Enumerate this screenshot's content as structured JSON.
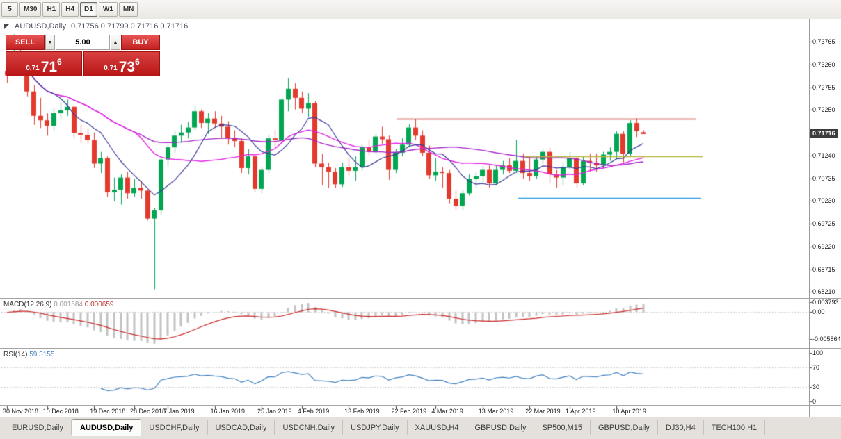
{
  "toolbar": {
    "periods": [
      {
        "label": "5",
        "active": false
      },
      {
        "label": "M30",
        "active": false
      },
      {
        "label": "H1",
        "active": false
      },
      {
        "label": "H4",
        "active": false
      },
      {
        "label": "D1",
        "active": true
      },
      {
        "label": "W1",
        "active": false
      },
      {
        "label": "MN",
        "active": false
      }
    ]
  },
  "chart_header": {
    "symbol": "AUDUSD,Daily",
    "ohlc": "0.71756 0.71799 0.71716 0.71716"
  },
  "icons": {
    "volume_down_icon": "▼",
    "volume_up_icon": "▲"
  },
  "trade_panel": {
    "sell_label": "SELL",
    "buy_label": "BUY",
    "volume": "5.00",
    "sell_price": {
      "prefix": "0.71",
      "big": "71",
      "sup": "6",
      "value": "0.71716"
    },
    "buy_price": {
      "prefix": "0.71",
      "big": "73",
      "sup": "6",
      "value": "0.71736"
    }
  },
  "price_axis": {
    "labels": [
      "0.73765",
      "0.73260",
      "0.72755",
      "0.72250",
      "0.71745",
      "0.71240",
      "0.70735",
      "0.70230",
      "0.69725",
      "0.69220",
      "0.68715",
      "0.68210"
    ],
    "current_tag": "0.71716"
  },
  "time_axis": {
    "labels": [
      {
        "text": "30 Nov 2018",
        "i": 0
      },
      {
        "text": "10 Dec 2018",
        "i": 6
      },
      {
        "text": "19 Dec 2018",
        "i": 13
      },
      {
        "text": "28 Dec 2018",
        "i": 19
      },
      {
        "text": "7 Jan 2019",
        "i": 24
      },
      {
        "text": "16 Jan 2019",
        "i": 31
      },
      {
        "text": "25 Jan 2019",
        "i": 38
      },
      {
        "text": "4 Feb 2019",
        "i": 44
      },
      {
        "text": "13 Feb 2019",
        "i": 51
      },
      {
        "text": "22 Feb 2019",
        "i": 58
      },
      {
        "text": "4 Mar 2019",
        "i": 64
      },
      {
        "text": "13 Mar 2019",
        "i": 71
      },
      {
        "text": "22 Mar 2019",
        "i": 78
      },
      {
        "text": "1 Apr 2019",
        "i": 84
      },
      {
        "text": "10 Apr 2019",
        "i": 91
      }
    ]
  },
  "macd_panel": {
    "label": "MACD(12,26,9)",
    "main_value": "0.001584",
    "signal_value": "0.000659",
    "scale": [
      "0.003793",
      "0.00",
      "-0.005864"
    ]
  },
  "rsi_panel": {
    "label": "RSI(14)",
    "value": "59.3155",
    "scale": [
      "100",
      "70",
      "30",
      "0"
    ]
  },
  "tabs": [
    {
      "label": "EURUSD,Daily",
      "active": false
    },
    {
      "label": "AUDUSD,Daily",
      "active": true
    },
    {
      "label": "USDCHF,Daily",
      "active": false
    },
    {
      "label": "USDCAD,Daily",
      "active": false
    },
    {
      "label": "USDCNH,Daily",
      "active": false
    },
    {
      "label": "USDJPY,Daily",
      "active": false
    },
    {
      "label": "XAUUSD,H4",
      "active": false
    },
    {
      "label": "GBPUSD,Daily",
      "active": false
    },
    {
      "label": "SP500,M15",
      "active": false
    },
    {
      "label": "GBPUSD,Daily",
      "active": false
    },
    {
      "label": "DJ30,H4",
      "active": false
    },
    {
      "label": "TECH100,H1",
      "active": false
    }
  ],
  "chart_data": {
    "type": "candlestick",
    "symbol": "AUDUSD",
    "timeframe": "Daily",
    "ylim": [
      0.68092,
      0.74228
    ],
    "overlays": {
      "ma_fast_period": 8,
      "ma_mid_period": 20,
      "ma_slow_period": 45
    },
    "hlines": [
      {
        "color": "#cc4437",
        "price": 0.7205,
        "x1": 570,
        "x2": 1000
      },
      {
        "color": "#b6b63a",
        "price": 0.71225,
        "x1": 753,
        "x2": 1010
      },
      {
        "color": "#2f9de0",
        "price": 0.703,
        "x1": 745,
        "x2": 1008
      }
    ],
    "colors": {
      "up": "#00a651",
      "down": "#e33a2d",
      "ma_fast": "#3b3b9d",
      "ma_mid": "#e522e5",
      "ma_slow": "#a623c9",
      "macd_hist": "#c3c3c3",
      "macd_signal": "#cc2929",
      "rsi": "#3e7fc1"
    },
    "candles": [
      [
        0.7312,
        0.7327,
        0.7285,
        0.7302
      ],
      [
        0.7302,
        0.7393,
        0.73,
        0.7355
      ],
      [
        0.7355,
        0.7364,
        0.7333,
        0.734
      ],
      [
        0.734,
        0.7345,
        0.7255,
        0.7266
      ],
      [
        0.7266,
        0.728,
        0.7192,
        0.7212
      ],
      [
        0.7212,
        0.7252,
        0.7185,
        0.7202
      ],
      [
        0.7202,
        0.7218,
        0.7168,
        0.719
      ],
      [
        0.719,
        0.7228,
        0.718,
        0.7218
      ],
      [
        0.7218,
        0.7242,
        0.7205,
        0.7224
      ],
      [
        0.7224,
        0.7248,
        0.7212,
        0.7232
      ],
      [
        0.7232,
        0.7235,
        0.7162,
        0.7174
      ],
      [
        0.7174,
        0.7192,
        0.7152,
        0.717
      ],
      [
        0.717,
        0.7185,
        0.715,
        0.7158
      ],
      [
        0.7158,
        0.7175,
        0.7096,
        0.7106
      ],
      [
        0.7106,
        0.7132,
        0.7085,
        0.7118
      ],
      [
        0.7118,
        0.7122,
        0.7032,
        0.7042
      ],
      [
        0.7042,
        0.7075,
        0.7022,
        0.7048
      ],
      [
        0.7048,
        0.7082,
        0.7015,
        0.7075
      ],
      [
        0.7075,
        0.7088,
        0.7028,
        0.704
      ],
      [
        0.704,
        0.7072,
        0.7032,
        0.7052
      ],
      [
        0.7052,
        0.7068,
        0.7028,
        0.7046
      ],
      [
        0.7046,
        0.7048,
        0.698,
        0.6984
      ],
      [
        0.6984,
        0.7008,
        0.6827,
        0.7002
      ],
      [
        0.7002,
        0.7122,
        0.6992,
        0.7115
      ],
      [
        0.7115,
        0.7148,
        0.71,
        0.7142
      ],
      [
        0.7142,
        0.7178,
        0.713,
        0.7168
      ],
      [
        0.7168,
        0.7192,
        0.7152,
        0.7175
      ],
      [
        0.7175,
        0.7198,
        0.7162,
        0.7186
      ],
      [
        0.7186,
        0.7235,
        0.718,
        0.7222
      ],
      [
        0.7222,
        0.7226,
        0.7185,
        0.7196
      ],
      [
        0.7196,
        0.7218,
        0.7172,
        0.7206
      ],
      [
        0.7206,
        0.7222,
        0.7185,
        0.7195
      ],
      [
        0.7195,
        0.7212,
        0.7162,
        0.7188
      ],
      [
        0.7188,
        0.72,
        0.7148,
        0.7162
      ],
      [
        0.7162,
        0.718,
        0.7142,
        0.7156
      ],
      [
        0.7156,
        0.7162,
        0.7085,
        0.7096
      ],
      [
        0.7096,
        0.7138,
        0.7082,
        0.7122
      ],
      [
        0.7122,
        0.7128,
        0.7042,
        0.705
      ],
      [
        0.705,
        0.7098,
        0.704,
        0.7092
      ],
      [
        0.7092,
        0.717,
        0.7085,
        0.7162
      ],
      [
        0.7162,
        0.718,
        0.7142,
        0.7158
      ],
      [
        0.7158,
        0.7252,
        0.7152,
        0.7248
      ],
      [
        0.7248,
        0.7295,
        0.7222,
        0.7272
      ],
      [
        0.7272,
        0.7284,
        0.7226,
        0.7252
      ],
      [
        0.7252,
        0.7266,
        0.7218,
        0.7228
      ],
      [
        0.7228,
        0.7262,
        0.721,
        0.724
      ],
      [
        0.724,
        0.7245,
        0.7098,
        0.7106
      ],
      [
        0.7106,
        0.7128,
        0.7058,
        0.7098
      ],
      [
        0.7098,
        0.7108,
        0.7052,
        0.7088
      ],
      [
        0.7088,
        0.7096,
        0.7052,
        0.706
      ],
      [
        0.706,
        0.7108,
        0.7054,
        0.7098
      ],
      [
        0.7098,
        0.7118,
        0.708,
        0.709
      ],
      [
        0.709,
        0.7122,
        0.7068,
        0.7098
      ],
      [
        0.7098,
        0.7148,
        0.709,
        0.7142
      ],
      [
        0.7142,
        0.7158,
        0.7125,
        0.7132
      ],
      [
        0.7132,
        0.7172,
        0.7126,
        0.7166
      ],
      [
        0.7166,
        0.7188,
        0.715,
        0.716
      ],
      [
        0.716,
        0.7168,
        0.707,
        0.7092
      ],
      [
        0.7092,
        0.7138,
        0.7085,
        0.713
      ],
      [
        0.713,
        0.7162,
        0.7122,
        0.7148
      ],
      [
        0.7148,
        0.7194,
        0.7142,
        0.7186
      ],
      [
        0.7186,
        0.7205,
        0.7158,
        0.7168
      ],
      [
        0.7168,
        0.718,
        0.7122,
        0.713
      ],
      [
        0.713,
        0.7146,
        0.7072,
        0.708
      ],
      [
        0.708,
        0.7118,
        0.7068,
        0.7088
      ],
      [
        0.7088,
        0.7098,
        0.7052,
        0.7085
      ],
      [
        0.7085,
        0.7092,
        0.7018,
        0.7028
      ],
      [
        0.7028,
        0.7048,
        0.7002,
        0.7012
      ],
      [
        0.7012,
        0.7048,
        0.7003,
        0.704
      ],
      [
        0.704,
        0.7082,
        0.7035,
        0.7072
      ],
      [
        0.7072,
        0.7088,
        0.7052,
        0.7078
      ],
      [
        0.7078,
        0.7102,
        0.7065,
        0.7092
      ],
      [
        0.7092,
        0.7102,
        0.7052,
        0.7062
      ],
      [
        0.7062,
        0.7102,
        0.7058,
        0.7092
      ],
      [
        0.7092,
        0.7112,
        0.7082,
        0.7102
      ],
      [
        0.7102,
        0.7118,
        0.7085,
        0.709
      ],
      [
        0.709,
        0.7158,
        0.7085,
        0.7112
      ],
      [
        0.7112,
        0.7128,
        0.7072,
        0.7085
      ],
      [
        0.7085,
        0.7122,
        0.7068,
        0.7078
      ],
      [
        0.7078,
        0.7122,
        0.7072,
        0.7115
      ],
      [
        0.7115,
        0.7138,
        0.7105,
        0.7132
      ],
      [
        0.7132,
        0.7142,
        0.7062,
        0.7082
      ],
      [
        0.7082,
        0.7092,
        0.7052,
        0.7075
      ],
      [
        0.7075,
        0.7108,
        0.7058,
        0.7098
      ],
      [
        0.7098,
        0.7132,
        0.7092,
        0.7118
      ],
      [
        0.7118,
        0.7122,
        0.7052,
        0.7062
      ],
      [
        0.7062,
        0.7122,
        0.7058,
        0.7112
      ],
      [
        0.7112,
        0.7128,
        0.7088,
        0.7108
      ],
      [
        0.7108,
        0.7128,
        0.7088,
        0.7102
      ],
      [
        0.7102,
        0.7132,
        0.7095,
        0.7126
      ],
      [
        0.7126,
        0.7142,
        0.7112,
        0.7132
      ],
      [
        0.7132,
        0.7178,
        0.7116,
        0.7172
      ],
      [
        0.7172,
        0.7178,
        0.7108,
        0.7128
      ],
      [
        0.7128,
        0.7202,
        0.7122,
        0.7196
      ],
      [
        0.7196,
        0.7206,
        0.7165,
        0.7178
      ],
      [
        0.71756,
        0.71799,
        0.71716,
        0.71716
      ]
    ]
  }
}
